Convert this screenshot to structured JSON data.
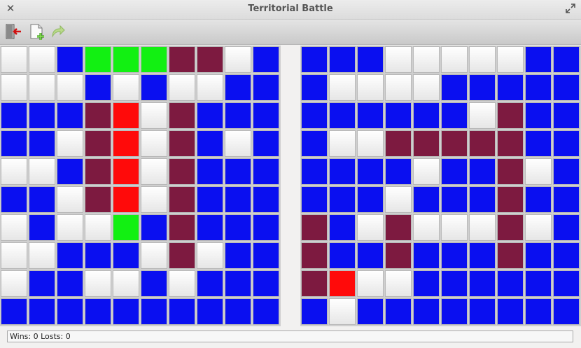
{
  "window": {
    "title": "Territorial Battle"
  },
  "toolbar": {
    "buttons": [
      {
        "name": "exit",
        "icon": "exit-door-icon"
      },
      {
        "name": "new-game",
        "icon": "new-document-icon"
      },
      {
        "name": "redo",
        "icon": "redo-arrow-icon"
      }
    ]
  },
  "colors": {
    "W": "#f4f4f4",
    "B": "#0a0ff0",
    "G": "#12f012",
    "M": "#7d1a40",
    "R": "#ff0a0a"
  },
  "boards": {
    "left": [
      "WWBGGGMMWB",
      "WWWBWBWWBB",
      "BBBMRWMBBB",
      "BBWMRWMBWB",
      "WWBMRWMBBB",
      "BBWMRWMBBB",
      "WBWWGBMBBB",
      "WWBBBWMWBB",
      "WBBWWBWBBB",
      "BBBBBBBBBB"
    ],
    "right": [
      "BBBWWWWWBB",
      "BWWWWBBBBB",
      "BBBBBBWMBB",
      "BWWMMMMMBB",
      "BBBBWBBMWB",
      "BBBWBBBMBB",
      "MBWMWWWMWB",
      "MBBMBBBMBB",
      "MRWWBBBBBB",
      "BWBBBBBBBB"
    ]
  },
  "status": {
    "text": "Wins: 0 Losts: 0"
  }
}
